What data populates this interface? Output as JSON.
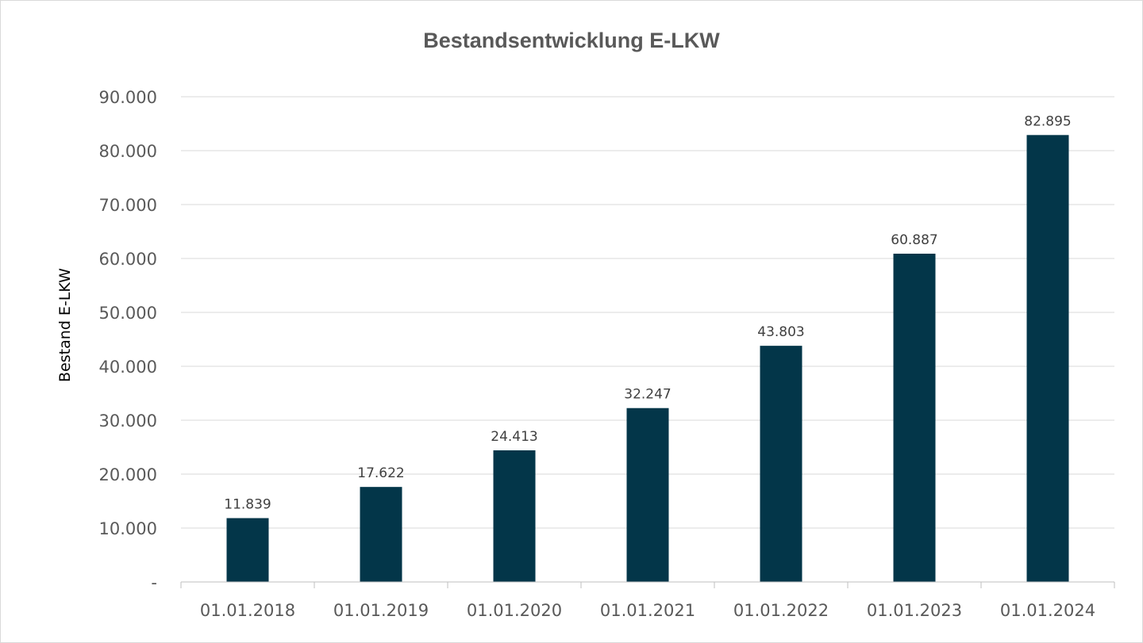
{
  "chart_data": {
    "type": "bar",
    "title": "Bestandsentwicklung E-LKW",
    "xlabel": "",
    "ylabel": "Bestand E-LKW",
    "categories": [
      "01.01.2018",
      "01.01.2019",
      "01.01.2020",
      "01.01.2021",
      "01.01.2022",
      "01.01.2023",
      "01.01.2024"
    ],
    "values": [
      11839,
      17622,
      24413,
      32247,
      43803,
      60887,
      82895
    ],
    "value_labels": [
      "11.839",
      "17.622",
      "24.413",
      "32.247",
      "43.803",
      "60.887",
      "82.895"
    ],
    "ylim": [
      0,
      90000
    ],
    "yticks": [
      0,
      10000,
      20000,
      30000,
      40000,
      50000,
      60000,
      70000,
      80000,
      90000
    ],
    "ytick_labels": [
      "-",
      "10.000",
      "20.000",
      "30.000",
      "40.000",
      "50.000",
      "60.000",
      "70.000",
      "80.000",
      "90.000"
    ],
    "grid": true,
    "legend": "none",
    "bar_color": "#033649"
  }
}
